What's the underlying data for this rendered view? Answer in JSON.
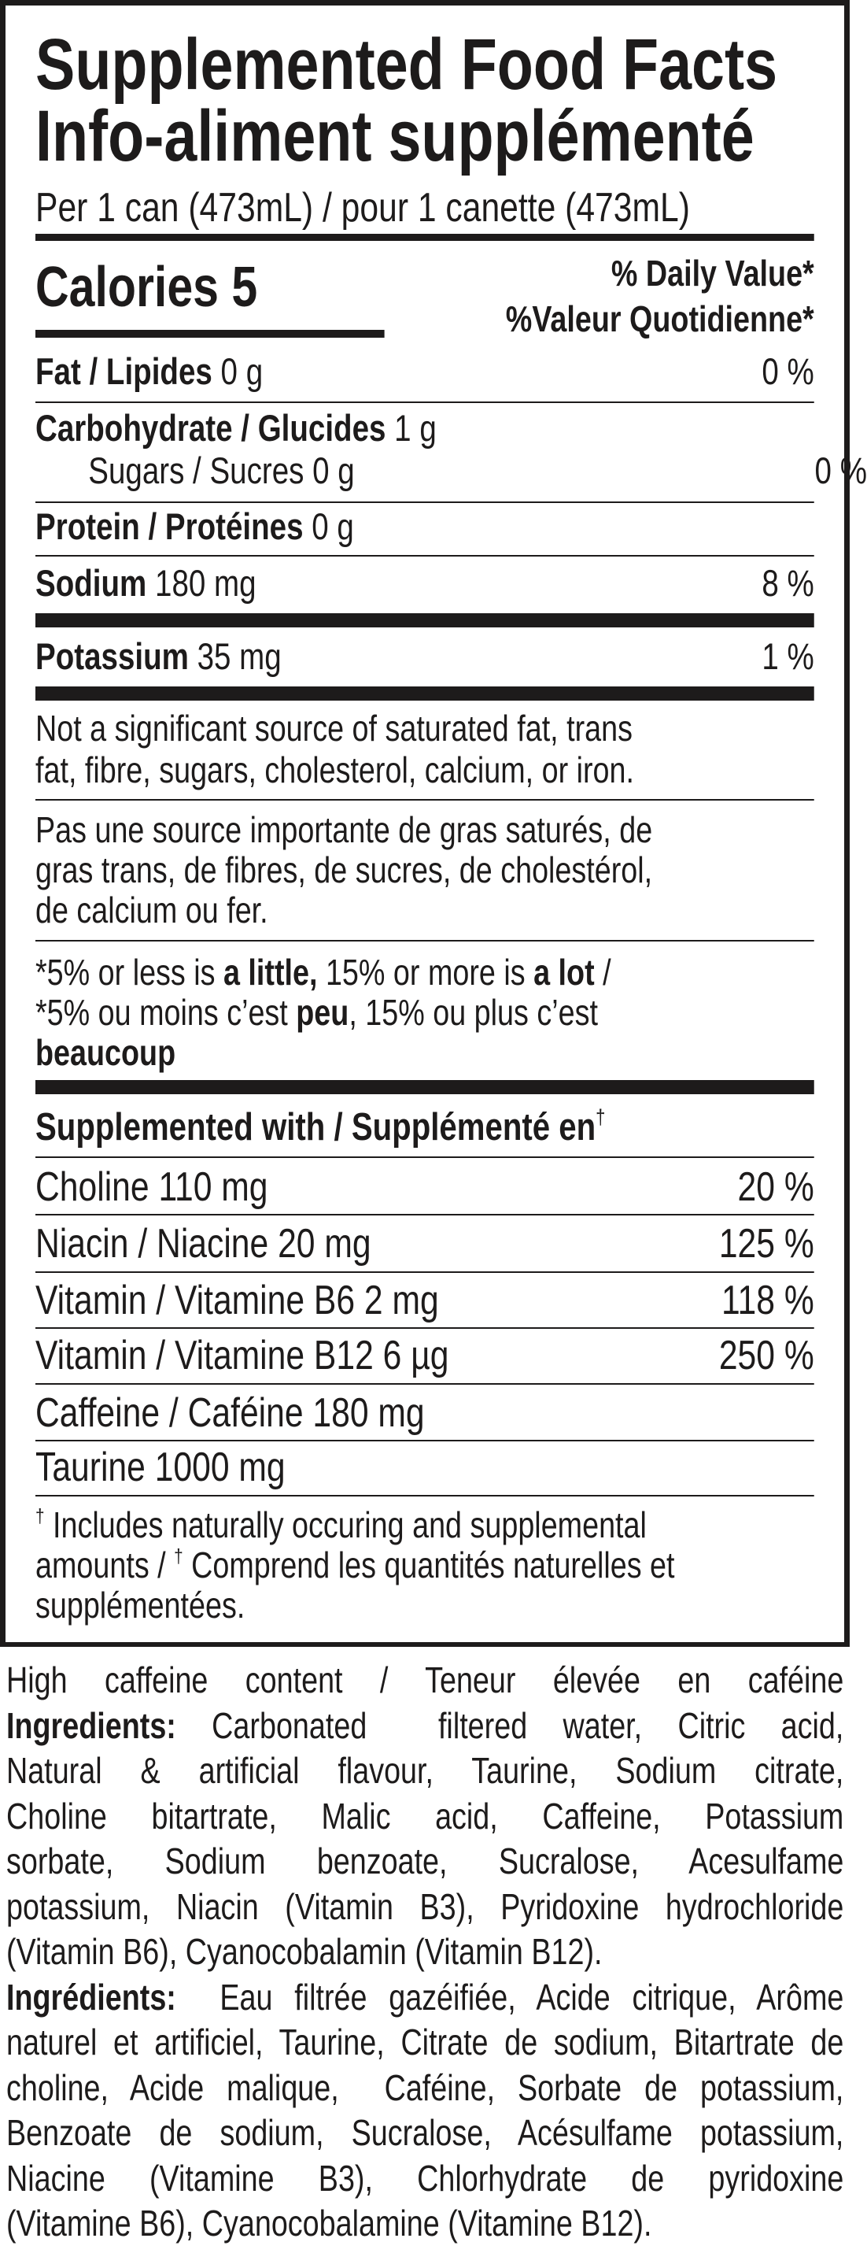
{
  "label": {
    "title_en": "Supplemented Food Facts",
    "title_fr": "Info-aliment supplémenté",
    "serving": "Per 1 can (473mL) / pour 1 canette (473mL)",
    "calories": "Calories 5",
    "dv_en": "% Daily Value*",
    "dv_fr": "%Valeur Quotidienne*",
    "nutrients": [
      {
        "name": "Fat / Lipides",
        "amount": " 0 g",
        "dv": "0 %"
      },
      {
        "name": "Carbohydrate / Glucides",
        "amount": " 1 g",
        "dv": ""
      },
      {
        "name": "",
        "amount": "Sugars / Sucres 0 g",
        "dv": "0 %"
      },
      {
        "name": "Protein / Protéines",
        "amount": " 0 g",
        "dv": ""
      },
      {
        "name": "Sodium",
        "amount": " 180 mg",
        "dv": "8 %"
      },
      {
        "name": "Potassium",
        "amount": " 35 mg",
        "dv": "1 %"
      }
    ],
    "not_significant_en": [
      "Not a significant source of saturated fat, trans",
      "fat, fibre, sugars, cholesterol, calcium, or iron."
    ],
    "not_significant_fr": [
      "Pas une source importante de gras saturés, de",
      "gras trans, de fibres, de sucres, de cholestérol,",
      "de calcium ou fer."
    ],
    "dv_note": [
      [
        {
          "t": "*5% or less is ",
          "b": false
        },
        {
          "t": "a little,",
          "b": true
        },
        {
          "t": " 15% or more is ",
          "b": false
        },
        {
          "t": "a lot",
          "b": true
        },
        {
          "t": " /",
          "b": false
        }
      ],
      [
        {
          "t": "*5% ou moins c’est ",
          "b": false
        },
        {
          "t": "peu",
          "b": true
        },
        {
          "t": ", 15% ou plus c’est",
          "b": false
        }
      ],
      [
        {
          "t": "beaucoup",
          "b": true
        }
      ]
    ],
    "supplemented_heading": "Supplemented with / Supplémenté en",
    "dagger": "†",
    "supplements": [
      {
        "name": "Choline 110 mg",
        "dv": "20 %"
      },
      {
        "name": "Niacin / Niacine 20 mg",
        "dv": "125 %"
      },
      {
        "name": "Vitamin / Vitamine B6 2 mg",
        "dv": "118 %"
      },
      {
        "name": "Vitamin / Vitamine B12 6 µg",
        "dv": "250 %"
      },
      {
        "name": "Caffeine / Caféine 180 mg",
        "dv": ""
      },
      {
        "name": "Taurine 1000 mg",
        "dv": ""
      }
    ],
    "footnote": {
      "line1": "Includes naturally occuring and supplemental",
      "line2a": "amounts / ",
      "line2b": "Comprend les quantités naturelles et",
      "line3": "supplémentées."
    }
  },
  "below": {
    "lines": [
      {
        "b": "",
        "t": "High caffeine content / Teneur élevée en caféine"
      },
      {
        "b": "Ingredients:",
        "t": " Carbonated  filtered water, Citric acid,"
      },
      {
        "b": "",
        "t": "Natural & artificial flavour, Taurine, Sodium citrate,"
      },
      {
        "b": "",
        "t": "Choline bitartrate, Malic acid, Caffeine, Potassium"
      },
      {
        "b": "",
        "t": "sorbate, Sodium benzoate, Sucralose, Acesulfame"
      },
      {
        "b": "",
        "t": "potassium, Niacin (Vitamin B3), Pyridoxine hydrochloride"
      },
      {
        "b": "",
        "t": "(Vitamin B6), Cyanocobalamin (Vitamin B12)."
      },
      {
        "b": "Ingrédients:",
        "t": "  Eau filtrée gazéifiée, Acide citrique, Arôme"
      },
      {
        "b": "",
        "t": "naturel et artificiel, Taurine, Citrate de sodium, Bitartrate de"
      },
      {
        "b": "",
        "t": "choline, Acide malique,  Caféine, Sorbate de potassium,"
      },
      {
        "b": "",
        "t": "Benzoate de sodium, Sucralose, Acésulfame potassium,"
      },
      {
        "b": "",
        "t": "Niacine (Vitamine B3), Chlorhydrate de pyridoxine"
      },
      {
        "b": "",
        "t": "(Vitamine B6), Cyanocobalamine (Vitamine B12)."
      }
    ]
  }
}
